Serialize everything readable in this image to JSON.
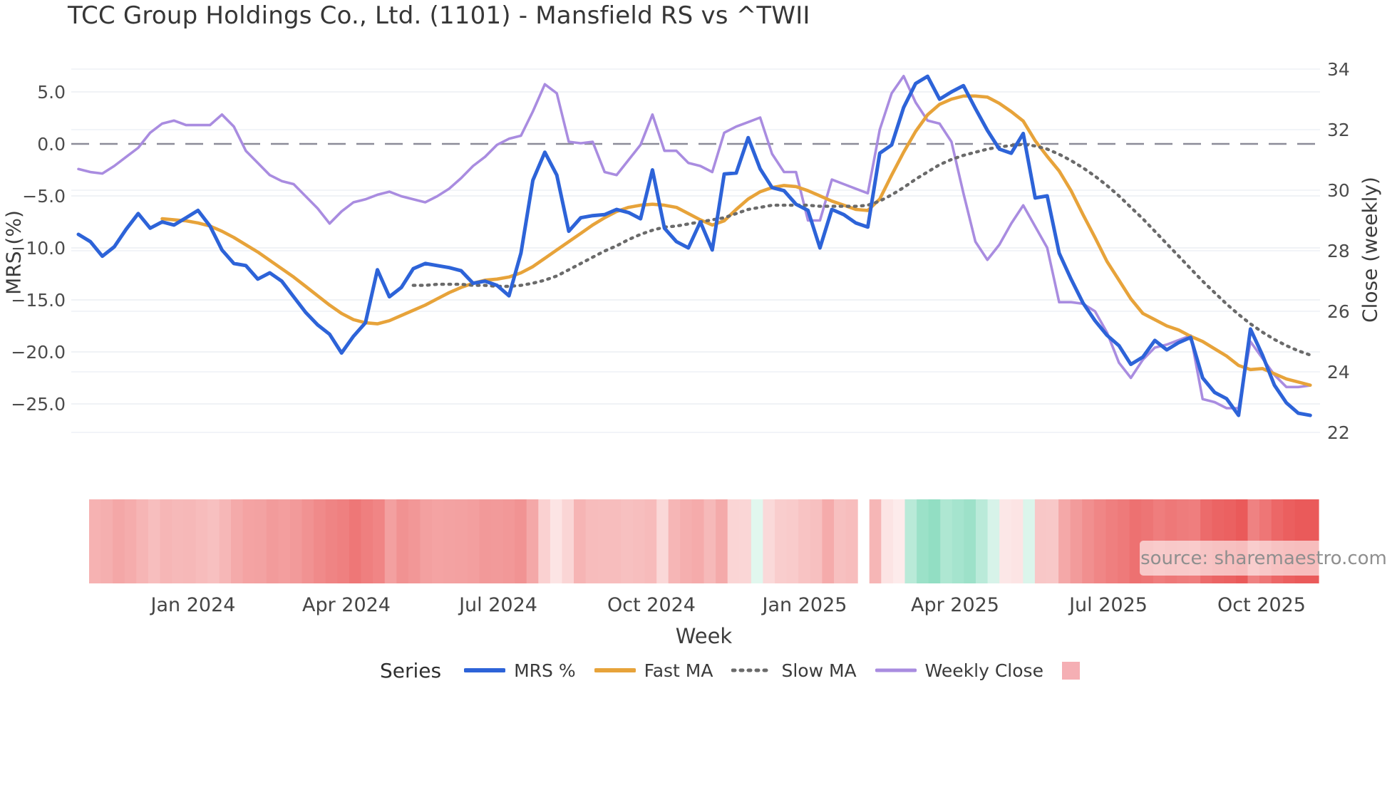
{
  "title": "TCC Group Holdings Co., Ltd. (1101) - Mansfield RS vs ^TWII",
  "source_note": "source: sharemaestro.com",
  "legend": {
    "title": "Series",
    "heatmap_swatch_color": "#f5afb4"
  },
  "chart_data": {
    "type": "line",
    "subtype": "dual-axis weekly lines with MRS heatmap strip",
    "n_weeks": 104,
    "x_axis": {
      "label": "Week",
      "tick_labels": [
        "Jan 2024",
        "Apr 2024",
        "Jul 2024",
        "Oct 2024",
        "Jan 2025",
        "Apr 2025",
        "Jul 2025",
        "Oct 2025"
      ],
      "tick_weeks": [
        9.6,
        22.4,
        35.1,
        47.9,
        60.7,
        73.3,
        86.1,
        98.9
      ],
      "grid": false
    },
    "left_axis": {
      "label": "MRS (%)",
      "tick_labels": [
        "5.0",
        "0.0",
        "−5.0",
        "−10.0",
        "−15.0",
        "−20.0",
        "−25.0"
      ],
      "tick_values": [
        5,
        0,
        -5,
        -10,
        -15,
        -20,
        -25
      ],
      "range": [
        -27.5,
        7.5
      ],
      "zero_line": "dashed",
      "grid": true
    },
    "right_axis": {
      "label": "Close (weekly)",
      "tick_labels": [
        "34",
        "32",
        "30",
        "28",
        "26",
        "24",
        "22"
      ],
      "tick_values": [
        34,
        32,
        30,
        28,
        26,
        24,
        22
      ],
      "range": [
        21.7,
        34.3
      ],
      "grid": true
    },
    "series": [
      {
        "name": "MRS %",
        "axis": "left",
        "color": "#2d63d8",
        "style": "solid",
        "values": [
          -8.7,
          -9.4,
          -10.8,
          -9.9,
          -8.2,
          -6.7,
          -8.1,
          -7.5,
          -7.8,
          -7.1,
          -6.4,
          -7.9,
          -10.2,
          -11.5,
          -11.7,
          -13.0,
          -12.4,
          -13.2,
          -14.7,
          -16.2,
          -17.4,
          -18.3,
          -20.1,
          -18.5,
          -17.2,
          -12.1,
          -14.7,
          -13.8,
          -12.0,
          -11.5,
          -11.7,
          -11.9,
          -12.2,
          -13.4,
          -13.2,
          -13.6,
          -14.6,
          -10.5,
          -3.5,
          -0.8,
          -3.0,
          -8.4,
          -7.1,
          -6.9,
          -6.8,
          -6.3,
          -6.6,
          -7.2,
          -2.5,
          -8.1,
          -9.4,
          -10.0,
          -7.5,
          -10.2,
          -2.9,
          -2.8,
          0.6,
          -2.4,
          -4.2,
          -4.5,
          -5.8,
          -6.4,
          -10.0,
          -6.3,
          -6.8,
          -7.6,
          -8.0,
          -0.9,
          -0.1,
          3.5,
          5.8,
          6.5,
          4.3,
          5.0,
          5.6,
          3.4,
          1.3,
          -0.5,
          -0.9,
          1.0,
          -5.2,
          -5.0,
          -10.5,
          -13.0,
          -15.3,
          -17.0,
          -18.4,
          -19.4,
          -21.2,
          -20.5,
          -18.9,
          -19.8,
          -19.1,
          -18.6,
          -22.5,
          -23.9,
          -24.5,
          -26.1,
          -17.8,
          -20.3,
          -23.2,
          -24.9,
          -25.9,
          -26.1
        ]
      },
      {
        "name": "Fast MA",
        "axis": "left",
        "color": "#e7a33a",
        "style": "solid",
        "values": [
          null,
          null,
          null,
          null,
          null,
          null,
          null,
          -7.2,
          -7.3,
          -7.4,
          -7.6,
          -7.9,
          -8.4,
          -9.0,
          -9.7,
          -10.4,
          -11.2,
          -12.0,
          -12.8,
          -13.7,
          -14.6,
          -15.5,
          -16.3,
          -16.9,
          -17.2,
          -17.3,
          -17.0,
          -16.5,
          -16.0,
          -15.5,
          -14.9,
          -14.3,
          -13.8,
          -13.4,
          -13.1,
          -13.0,
          -12.8,
          -12.4,
          -11.8,
          -11.0,
          -10.2,
          -9.4,
          -8.6,
          -7.8,
          -7.1,
          -6.5,
          -6.1,
          -5.9,
          -5.8,
          -5.9,
          -6.1,
          -6.7,
          -7.3,
          -7.8,
          -7.4,
          -6.3,
          -5.3,
          -4.6,
          -4.2,
          -4.0,
          -4.1,
          -4.5,
          -5.0,
          -5.5,
          -5.9,
          -6.3,
          -6.4,
          -5.3,
          -3.0,
          -0.8,
          1.2,
          2.8,
          3.8,
          4.3,
          4.6,
          4.6,
          4.5,
          3.9,
          3.1,
          2.2,
          0.3,
          -1.2,
          -2.6,
          -4.5,
          -6.8,
          -9.0,
          -11.3,
          -13.1,
          -14.9,
          -16.3,
          -16.9,
          -17.5,
          -17.9,
          -18.5,
          -19.0,
          -19.7,
          -20.4,
          -21.3,
          -21.7,
          -21.6,
          -22.1,
          -22.6,
          -22.9,
          -23.2
        ]
      },
      {
        "name": "Slow MA",
        "axis": "left",
        "color": "#6a6a6a",
        "style": "dotted",
        "values": [
          null,
          null,
          null,
          null,
          null,
          null,
          null,
          null,
          null,
          null,
          null,
          null,
          null,
          null,
          null,
          null,
          null,
          null,
          null,
          null,
          null,
          null,
          null,
          null,
          null,
          null,
          null,
          null,
          -13.6,
          -13.6,
          -13.5,
          -13.5,
          -13.5,
          -13.6,
          -13.6,
          -13.7,
          -13.7,
          -13.6,
          -13.4,
          -13.1,
          -12.7,
          -12.1,
          -11.5,
          -10.9,
          -10.3,
          -9.8,
          -9.2,
          -8.7,
          -8.3,
          -8.0,
          -7.9,
          -7.7,
          -7.5,
          -7.3,
          -7.1,
          -6.7,
          -6.3,
          -6.1,
          -5.9,
          -5.9,
          -5.9,
          -5.9,
          -6.0,
          -6.0,
          -6.0,
          -6.0,
          -5.9,
          -5.5,
          -4.9,
          -4.2,
          -3.4,
          -2.7,
          -2.0,
          -1.5,
          -1.1,
          -0.8,
          -0.5,
          -0.3,
          -0.15,
          -0.05,
          -0.2,
          -0.5,
          -1.0,
          -1.6,
          -2.3,
          -3.1,
          -4.0,
          -5.0,
          -6.1,
          -7.2,
          -8.4,
          -9.6,
          -10.8,
          -12.0,
          -13.2,
          -14.3,
          -15.4,
          -16.4,
          -17.3,
          -18.1,
          -18.8,
          -19.4,
          -19.9,
          -20.3
        ]
      },
      {
        "name": "Weekly Close",
        "axis": "right",
        "color": "#a98ce0",
        "style": "solid",
        "values": [
          30.7,
          30.6,
          30.55,
          30.8,
          31.1,
          31.4,
          31.9,
          32.2,
          32.3,
          32.15,
          32.15,
          32.15,
          32.5,
          32.1,
          31.3,
          30.9,
          30.5,
          30.3,
          30.2,
          29.8,
          29.4,
          28.9,
          29.3,
          29.6,
          29.7,
          29.85,
          29.95,
          29.8,
          29.7,
          29.6,
          29.8,
          30.05,
          30.4,
          30.8,
          31.1,
          31.5,
          31.7,
          31.8,
          32.6,
          33.5,
          33.2,
          31.6,
          31.55,
          31.6,
          30.6,
          30.5,
          31.0,
          31.5,
          32.5,
          31.3,
          31.3,
          30.9,
          30.8,
          30.6,
          31.9,
          32.1,
          32.25,
          32.4,
          31.2,
          30.6,
          30.6,
          29.0,
          29.0,
          30.35,
          30.2,
          30.05,
          29.9,
          32.0,
          33.2,
          33.77,
          32.9,
          32.3,
          32.2,
          31.6,
          29.9,
          28.3,
          27.7,
          28.2,
          28.9,
          29.5,
          28.8,
          28.1,
          26.3,
          26.3,
          26.25,
          26.0,
          25.3,
          24.3,
          23.8,
          24.4,
          24.8,
          24.9,
          25.05,
          25.2,
          23.1,
          23.0,
          22.8,
          22.8,
          25.0,
          24.45,
          23.9,
          23.5,
          23.5,
          23.55
        ]
      }
    ],
    "heatmap": {
      "name": "MRS heatmap strip",
      "driven_by": "MRS %",
      "gap_week_index": 65,
      "negative_color": "#ea5a5a",
      "negative_light": "#fdecec",
      "positive_color": "#8cdcc0",
      "positive_light": "#ecfaf4"
    }
  }
}
